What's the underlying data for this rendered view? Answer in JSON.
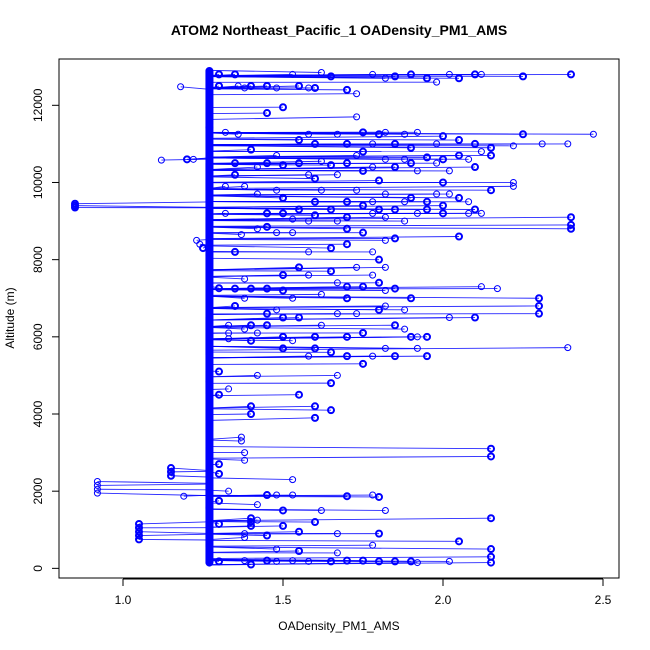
{
  "chart_data": {
    "type": "scatter",
    "title": "ATOM2 Northeast_Pacific_1 OADensity_PM1_AMS",
    "xlabel": "OADensity_PM1_AMS",
    "ylabel": "Altitude (m)",
    "xlim": [
      0.8,
      2.55
    ],
    "ylim": [
      -250,
      13200
    ],
    "x_ticks": [
      1.0,
      1.5,
      2.0,
      2.5
    ],
    "x_tick_labels": [
      "1.0",
      "1.5",
      "2.0",
      "2.5"
    ],
    "y_ticks": [
      0,
      2000,
      4000,
      6000,
      8000,
      10000,
      12000
    ],
    "y_tick_labels": [
      "0",
      "2000",
      "4000",
      "6000",
      "8000",
      "10000",
      "12000"
    ],
    "series_color": "#0000ff",
    "grid": false,
    "legend": "none",
    "baseline_density": 1.27,
    "baseline_altitude_range": [
      150,
      12900
    ],
    "series": [
      {
        "points": [
          [
            0.85,
            9450
          ],
          [
            0.85,
            9400
          ],
          [
            0.85,
            9350
          ],
          [
            0.92,
            2250
          ],
          [
            0.92,
            2150
          ],
          [
            0.92,
            2050
          ],
          [
            0.92,
            1950
          ],
          [
            1.05,
            1150
          ],
          [
            1.05,
            1050
          ],
          [
            1.05,
            950
          ],
          [
            1.05,
            850
          ],
          [
            1.05,
            750
          ],
          [
            1.12,
            10580
          ],
          [
            1.15,
            2600
          ],
          [
            1.15,
            2500
          ],
          [
            1.15,
            2400
          ],
          [
            1.18,
            12480
          ],
          [
            1.19,
            1870
          ],
          [
            1.2,
            10600
          ],
          [
            1.22,
            10600
          ],
          [
            1.23,
            8500
          ],
          [
            1.24,
            8400
          ],
          [
            1.25,
            8300
          ],
          [
            1.3,
            12800
          ],
          [
            1.3,
            12500
          ],
          [
            1.3,
            7260
          ],
          [
            1.3,
            5100
          ],
          [
            1.3,
            4500
          ],
          [
            1.3,
            2700
          ],
          [
            1.3,
            2450
          ],
          [
            1.3,
            1750
          ],
          [
            1.3,
            1150
          ],
          [
            1.3,
            180
          ],
          [
            1.32,
            11300
          ],
          [
            1.32,
            9900
          ],
          [
            1.32,
            9200
          ],
          [
            1.33,
            6300
          ],
          [
            1.33,
            6100
          ],
          [
            1.33,
            5950
          ],
          [
            1.33,
            4650
          ],
          [
            1.33,
            2000
          ],
          [
            1.35,
            12800
          ],
          [
            1.35,
            10500
          ],
          [
            1.35,
            10200
          ],
          [
            1.35,
            8200
          ],
          [
            1.35,
            7250
          ],
          [
            1.35,
            6800
          ],
          [
            1.36,
            12500
          ],
          [
            1.36,
            11250
          ],
          [
            1.37,
            3400
          ],
          [
            1.37,
            3300
          ],
          [
            1.37,
            8650
          ],
          [
            1.38,
            12450
          ],
          [
            1.38,
            9900
          ],
          [
            1.38,
            7500
          ],
          [
            1.38,
            7000
          ],
          [
            1.38,
            6200
          ],
          [
            1.38,
            3000
          ],
          [
            1.38,
            2800
          ],
          [
            1.38,
            900
          ],
          [
            1.38,
            800
          ],
          [
            1.38,
            200
          ],
          [
            1.4,
            12500
          ],
          [
            1.4,
            10850
          ],
          [
            1.4,
            7250
          ],
          [
            1.4,
            6300
          ],
          [
            1.4,
            5900
          ],
          [
            1.4,
            4200
          ],
          [
            1.4,
            4000
          ],
          [
            1.4,
            1300
          ],
          [
            1.4,
            1200
          ],
          [
            1.4,
            1100
          ],
          [
            1.4,
            100
          ],
          [
            1.42,
            10400
          ],
          [
            1.42,
            9700
          ],
          [
            1.42,
            8800
          ],
          [
            1.42,
            6100
          ],
          [
            1.42,
            5000
          ],
          [
            1.42,
            1650
          ],
          [
            1.42,
            1250
          ],
          [
            1.45,
            12500
          ],
          [
            1.45,
            11800
          ],
          [
            1.45,
            10500
          ],
          [
            1.45,
            9200
          ],
          [
            1.45,
            8850
          ],
          [
            1.45,
            7250
          ],
          [
            1.45,
            6600
          ],
          [
            1.45,
            6300
          ],
          [
            1.45,
            200
          ],
          [
            1.45,
            850
          ],
          [
            1.45,
            1900
          ],
          [
            1.48,
            12450
          ],
          [
            1.48,
            10700
          ],
          [
            1.48,
            9800
          ],
          [
            1.48,
            8700
          ],
          [
            1.48,
            6700
          ],
          [
            1.48,
            1900
          ],
          [
            1.48,
            180
          ],
          [
            1.48,
            500
          ],
          [
            1.5,
            11950
          ],
          [
            1.5,
            10450
          ],
          [
            1.5,
            9600
          ],
          [
            1.5,
            9200
          ],
          [
            1.5,
            7600
          ],
          [
            1.5,
            7200
          ],
          [
            1.5,
            6500
          ],
          [
            1.5,
            6000
          ],
          [
            1.5,
            5700
          ],
          [
            1.5,
            1500
          ],
          [
            1.5,
            1100
          ],
          [
            1.53,
            12800
          ],
          [
            1.53,
            9050
          ],
          [
            1.53,
            8700
          ],
          [
            1.53,
            7000
          ],
          [
            1.53,
            5900
          ],
          [
            1.53,
            2300
          ],
          [
            1.53,
            1900
          ],
          [
            1.53,
            200
          ],
          [
            1.55,
            12500
          ],
          [
            1.55,
            11100
          ],
          [
            1.55,
            10500
          ],
          [
            1.55,
            9300
          ],
          [
            1.55,
            7800
          ],
          [
            1.55,
            6500
          ],
          [
            1.55,
            4500
          ],
          [
            1.55,
            950
          ],
          [
            1.55,
            450
          ],
          [
            1.58,
            12450
          ],
          [
            1.58,
            11250
          ],
          [
            1.58,
            10200
          ],
          [
            1.58,
            9000
          ],
          [
            1.58,
            8200
          ],
          [
            1.58,
            7600
          ],
          [
            1.58,
            5500
          ],
          [
            1.58,
            180
          ],
          [
            1.6,
            12450
          ],
          [
            1.6,
            11000
          ],
          [
            1.6,
            10100
          ],
          [
            1.6,
            9500
          ],
          [
            1.6,
            9150
          ],
          [
            1.6,
            6000
          ],
          [
            1.6,
            5700
          ],
          [
            1.6,
            4200
          ],
          [
            1.6,
            3900
          ],
          [
            1.6,
            1200
          ],
          [
            1.62,
            12850
          ],
          [
            1.62,
            10550
          ],
          [
            1.62,
            9800
          ],
          [
            1.62,
            7100
          ],
          [
            1.62,
            6300
          ],
          [
            1.62,
            1500
          ],
          [
            1.65,
            12750
          ],
          [
            1.65,
            10450
          ],
          [
            1.65,
            9300
          ],
          [
            1.65,
            8300
          ],
          [
            1.65,
            7700
          ],
          [
            1.65,
            5600
          ],
          [
            1.65,
            4800
          ],
          [
            1.65,
            4100
          ],
          [
            1.65,
            180
          ],
          [
            1.67,
            11250
          ],
          [
            1.67,
            10200
          ],
          [
            1.67,
            9000
          ],
          [
            1.67,
            7400
          ],
          [
            1.67,
            6600
          ],
          [
            1.67,
            5000
          ],
          [
            1.67,
            900
          ],
          [
            1.67,
            400
          ],
          [
            1.7,
            12400
          ],
          [
            1.7,
            11000
          ],
          [
            1.7,
            10500
          ],
          [
            1.7,
            9500
          ],
          [
            1.7,
            9100
          ],
          [
            1.7,
            8800
          ],
          [
            1.7,
            8400
          ],
          [
            1.7,
            7300
          ],
          [
            1.7,
            7000
          ],
          [
            1.7,
            6000
          ],
          [
            1.7,
            5500
          ],
          [
            1.7,
            1870
          ],
          [
            1.7,
            200
          ],
          [
            1.73,
            12300
          ],
          [
            1.73,
            11700
          ],
          [
            1.73,
            10700
          ],
          [
            1.73,
            9800
          ],
          [
            1.73,
            7800
          ],
          [
            1.73,
            6600
          ],
          [
            1.75,
            11300
          ],
          [
            1.75,
            10800
          ],
          [
            1.75,
            10300
          ],
          [
            1.75,
            9400
          ],
          [
            1.75,
            8700
          ],
          [
            1.75,
            7300
          ],
          [
            1.75,
            6100
          ],
          [
            1.75,
            5300
          ],
          [
            1.75,
            200
          ],
          [
            1.78,
            12800
          ],
          [
            1.78,
            11000
          ],
          [
            1.78,
            10400
          ],
          [
            1.78,
            9500
          ],
          [
            1.78,
            9200
          ],
          [
            1.78,
            8200
          ],
          [
            1.78,
            7600
          ],
          [
            1.78,
            5500
          ],
          [
            1.78,
            1900
          ],
          [
            1.78,
            600
          ],
          [
            1.8,
            11250
          ],
          [
            1.8,
            10050
          ],
          [
            1.8,
            9300
          ],
          [
            1.8,
            8000
          ],
          [
            1.8,
            7400
          ],
          [
            1.8,
            6700
          ],
          [
            1.8,
            900
          ],
          [
            1.8,
            180
          ],
          [
            1.8,
            1850
          ],
          [
            1.82,
            12700
          ],
          [
            1.82,
            11300
          ],
          [
            1.82,
            10600
          ],
          [
            1.82,
            9700
          ],
          [
            1.82,
            9100
          ],
          [
            1.82,
            8500
          ],
          [
            1.82,
            7800
          ],
          [
            1.82,
            7200
          ],
          [
            1.82,
            6800
          ],
          [
            1.82,
            5700
          ],
          [
            1.82,
            1500
          ],
          [
            1.85,
            12750
          ],
          [
            1.85,
            11000
          ],
          [
            1.85,
            10400
          ],
          [
            1.85,
            9300
          ],
          [
            1.85,
            8550
          ],
          [
            1.85,
            7250
          ],
          [
            1.85,
            6300
          ],
          [
            1.85,
            5500
          ],
          [
            1.85,
            180
          ],
          [
            1.88,
            11250
          ],
          [
            1.88,
            10600
          ],
          [
            1.88,
            9500
          ],
          [
            1.88,
            9000
          ],
          [
            1.88,
            6700
          ],
          [
            1.88,
            6200
          ],
          [
            1.9,
            12800
          ],
          [
            1.9,
            10900
          ],
          [
            1.9,
            10500
          ],
          [
            1.9,
            9600
          ],
          [
            1.9,
            7000
          ],
          [
            1.9,
            6000
          ],
          [
            1.9,
            180
          ],
          [
            1.92,
            11300
          ],
          [
            1.92,
            10300
          ],
          [
            1.92,
            9200
          ],
          [
            1.92,
            6000
          ],
          [
            1.92,
            5700
          ],
          [
            1.92,
            150
          ],
          [
            1.95,
            12700
          ],
          [
            1.95,
            10650
          ],
          [
            1.95,
            9500
          ],
          [
            1.95,
            9300
          ],
          [
            1.95,
            6000
          ],
          [
            1.95,
            5500
          ],
          [
            1.98,
            12600
          ],
          [
            1.98,
            11000
          ],
          [
            1.98,
            10500
          ],
          [
            1.98,
            9700
          ],
          [
            2.0,
            11200
          ],
          [
            2.0,
            10600
          ],
          [
            2.0,
            10000
          ],
          [
            2.0,
            9400
          ],
          [
            2.0,
            9200
          ],
          [
            2.02,
            12800
          ],
          [
            2.02,
            10300
          ],
          [
            2.02,
            9700
          ],
          [
            2.02,
            180
          ],
          [
            2.02,
            6500
          ],
          [
            2.05,
            12700
          ],
          [
            2.05,
            11100
          ],
          [
            2.05,
            10700
          ],
          [
            2.05,
            9600
          ],
          [
            2.05,
            8600
          ],
          [
            2.05,
            700
          ],
          [
            2.08,
            10600
          ],
          [
            2.08,
            9500
          ],
          [
            2.08,
            9200
          ],
          [
            2.1,
            12800
          ],
          [
            2.1,
            11000
          ],
          [
            2.1,
            10400
          ],
          [
            2.1,
            9300
          ],
          [
            2.1,
            6500
          ],
          [
            2.12,
            12800
          ],
          [
            2.12,
            10800
          ],
          [
            2.12,
            9200
          ],
          [
            2.12,
            7300
          ],
          [
            2.15,
            10900
          ],
          [
            2.15,
            10700
          ],
          [
            2.15,
            9800
          ],
          [
            2.15,
            3100
          ],
          [
            2.15,
            2900
          ],
          [
            2.15,
            1300
          ],
          [
            2.15,
            500
          ],
          [
            2.15,
            300
          ],
          [
            2.15,
            150
          ],
          [
            2.17,
            7250
          ],
          [
            2.22,
            10950
          ],
          [
            2.22,
            10000
          ],
          [
            2.22,
            9900
          ],
          [
            2.25,
            12750
          ],
          [
            2.25,
            11250
          ],
          [
            2.3,
            7000
          ],
          [
            2.3,
            6800
          ],
          [
            2.3,
            6600
          ],
          [
            2.31,
            11000
          ],
          [
            2.39,
            5720
          ],
          [
            2.39,
            11000
          ],
          [
            2.4,
            9100
          ],
          [
            2.4,
            8900
          ],
          [
            2.4,
            8800
          ],
          [
            2.4,
            12800
          ],
          [
            2.47,
            11250
          ]
        ]
      }
    ]
  }
}
